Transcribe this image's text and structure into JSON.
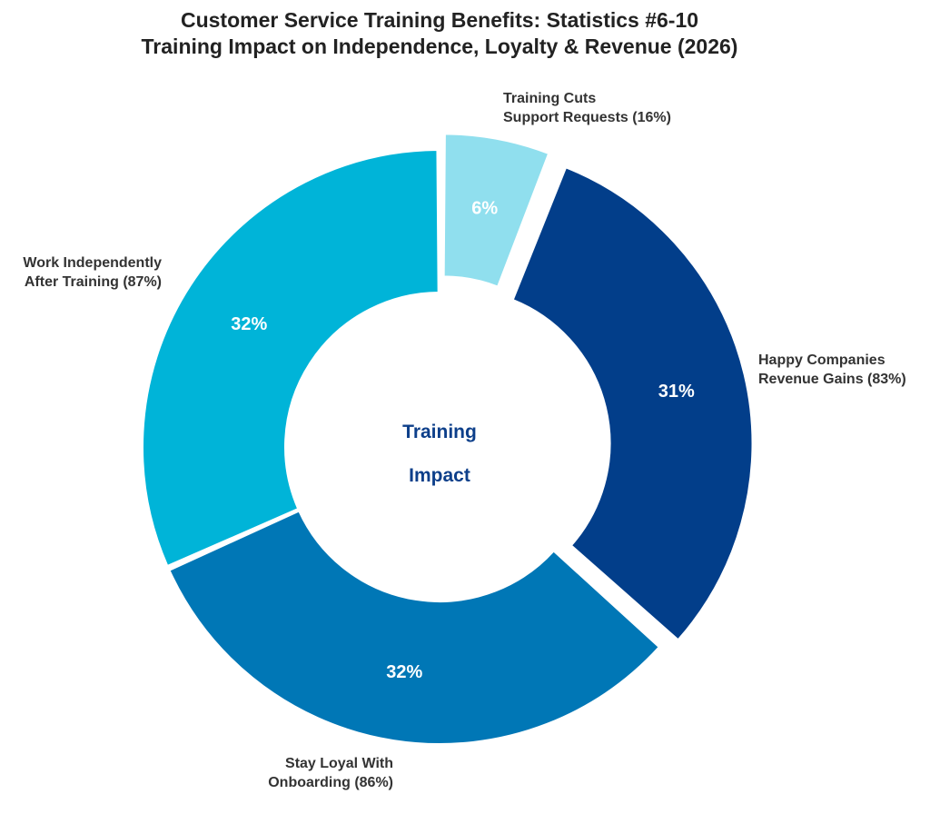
{
  "chart_data": {
    "type": "pie",
    "subtype": "donut",
    "title": "Customer Service Training Benefits: Statistics #6-10",
    "subtitle": "Training Impact on Independence, Loyalty & Revenue (2026)",
    "center_text": [
      "Training",
      "Impact"
    ],
    "center_color": "#0d3f8a",
    "start_angle_deg": 0,
    "direction": "clockwise",
    "slices": [
      {
        "label_lines": [
          "Training Cuts",
          "Support Requests (16%)"
        ],
        "percent_label": "6%",
        "value": 6,
        "color": "#90dfee",
        "exploded": true
      },
      {
        "label_lines": [
          "Happy Companies",
          "Revenue Gains (83%)"
        ],
        "percent_label": "31%",
        "value": 31,
        "color": "#023e8a",
        "exploded": true
      },
      {
        "label_lines": [
          "Stay Loyal With",
          "Onboarding (86%)"
        ],
        "percent_label": "32%",
        "value": 32,
        "color": "#0077b6",
        "exploded": false
      },
      {
        "label_lines": [
          "Work Independently",
          "After Training (87%)"
        ],
        "percent_label": "32%",
        "value": 32,
        "color": "#00b4d8",
        "exploded": false
      }
    ]
  }
}
